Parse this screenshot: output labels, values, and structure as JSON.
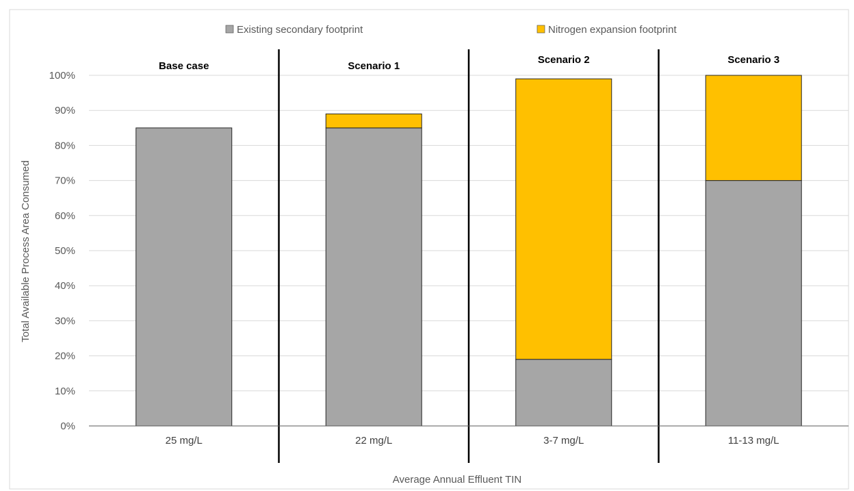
{
  "chart_data": {
    "type": "bar",
    "stacked": true,
    "xlabel": "Average Annual Effluent TIN",
    "ylabel": "Total Available Process Area Consumed",
    "ylim": [
      0,
      100
    ],
    "yticks": [
      "0%",
      "10%",
      "20%",
      "30%",
      "40%",
      "50%",
      "60%",
      "70%",
      "80%",
      "90%",
      "100%"
    ],
    "grid": true,
    "legend_position": "top",
    "groups": [
      "Base case",
      "Scenario 1",
      "Scenario 2",
      "Scenario 3"
    ],
    "categories": [
      "25 mg/L",
      "22 mg/L",
      "3-7 mg/L",
      "11-13 mg/L"
    ],
    "series": [
      {
        "name": "Existing secondary footprint",
        "color": "#a6a6a6",
        "values": [
          85,
          85,
          19,
          70
        ]
      },
      {
        "name": "Nitrogen expansion footprint",
        "color": "#ffc000",
        "values": [
          0,
          4,
          80,
          30
        ]
      }
    ]
  }
}
